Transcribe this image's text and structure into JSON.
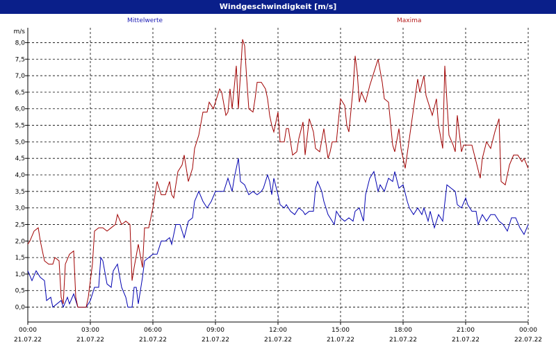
{
  "window": {
    "title": "Windgeschwindigkeit [m/s]"
  },
  "chart_data": {
    "type": "line",
    "title": "Windgeschwindigkeit [m/s]",
    "ylabel": "m/s",
    "ylim": [
      -0.45,
      8.45
    ],
    "xlim": [
      0,
      24
    ],
    "grid": true,
    "y_ticks": [
      "0,0",
      "0,5",
      "1,0",
      "1,5",
      "2,0",
      "2,5",
      "3,0",
      "3,5",
      "4,0",
      "4,5",
      "5,0",
      "5,5",
      "6,0",
      "6,5",
      "7,0",
      "7,5",
      "8,0"
    ],
    "x_ticks": [
      {
        "time": "00:00",
        "date": "21.07.22"
      },
      {
        "time": "03:00",
        "date": "21.07.22"
      },
      {
        "time": "06:00",
        "date": "21.07.22"
      },
      {
        "time": "09:00",
        "date": "21.07.22"
      },
      {
        "time": "12:00",
        "date": "21.07.22"
      },
      {
        "time": "15:00",
        "date": "21.07.22"
      },
      {
        "time": "18:00",
        "date": "21.07.22"
      },
      {
        "time": "21:00",
        "date": "21.07.22"
      },
      {
        "time": "00:00",
        "date": "22.07.22"
      }
    ],
    "series": [
      {
        "name": "Mittelwerte",
        "color": "#0000b0",
        "points": [
          [
            0,
            1.1
          ],
          [
            0.2,
            0.8
          ],
          [
            0.4,
            1.1
          ],
          [
            0.6,
            0.9
          ],
          [
            0.8,
            0.8
          ],
          [
            0.9,
            0.2
          ],
          [
            1.1,
            0.3
          ],
          [
            1.2,
            0.0
          ],
          [
            1.4,
            0.1
          ],
          [
            1.6,
            0.2
          ],
          [
            1.7,
            0.0
          ],
          [
            1.9,
            0.3
          ],
          [
            2.0,
            0.1
          ],
          [
            2.2,
            0.4
          ],
          [
            2.4,
            0.0
          ],
          [
            2.6,
            0.0
          ],
          [
            2.8,
            0.0
          ],
          [
            3.0,
            0.2
          ],
          [
            3.2,
            0.6
          ],
          [
            3.4,
            0.6
          ],
          [
            3.5,
            1.5
          ],
          [
            3.6,
            1.4
          ],
          [
            3.8,
            0.7
          ],
          [
            4.0,
            0.6
          ],
          [
            4.1,
            1.1
          ],
          [
            4.3,
            1.3
          ],
          [
            4.5,
            0.6
          ],
          [
            4.7,
            0.3
          ],
          [
            4.8,
            0.0
          ],
          [
            5.0,
            0.0
          ],
          [
            5.1,
            0.6
          ],
          [
            5.2,
            0.6
          ],
          [
            5.3,
            0.1
          ],
          [
            5.5,
            0.9
          ],
          [
            5.6,
            1.4
          ],
          [
            5.8,
            1.5
          ],
          [
            6.0,
            1.6
          ],
          [
            6.2,
            1.6
          ],
          [
            6.4,
            2.0
          ],
          [
            6.6,
            2.0
          ],
          [
            6.8,
            2.1
          ],
          [
            6.9,
            1.9
          ],
          [
            7.1,
            2.5
          ],
          [
            7.3,
            2.5
          ],
          [
            7.5,
            2.1
          ],
          [
            7.7,
            2.6
          ],
          [
            7.9,
            2.7
          ],
          [
            8.0,
            3.2
          ],
          [
            8.2,
            3.5
          ],
          [
            8.4,
            3.2
          ],
          [
            8.6,
            3.0
          ],
          [
            8.8,
            3.2
          ],
          [
            9.0,
            3.5
          ],
          [
            9.2,
            3.5
          ],
          [
            9.4,
            3.5
          ],
          [
            9.6,
            3.9
          ],
          [
            9.8,
            3.5
          ],
          [
            9.9,
            3.9
          ],
          [
            10.1,
            4.5
          ],
          [
            10.2,
            3.8
          ],
          [
            10.4,
            3.7
          ],
          [
            10.6,
            3.4
          ],
          [
            10.8,
            3.5
          ],
          [
            11.0,
            3.4
          ],
          [
            11.2,
            3.5
          ],
          [
            11.3,
            3.6
          ],
          [
            11.5,
            4.0
          ],
          [
            11.6,
            3.8
          ],
          [
            11.7,
            3.4
          ],
          [
            11.8,
            3.9
          ],
          [
            12.0,
            3.4
          ],
          [
            12.1,
            3.1
          ],
          [
            12.3,
            3.0
          ],
          [
            12.4,
            3.1
          ],
          [
            12.6,
            2.9
          ],
          [
            12.8,
            2.8
          ],
          [
            13.0,
            3.0
          ],
          [
            13.2,
            2.9
          ],
          [
            13.3,
            2.8
          ],
          [
            13.5,
            2.9
          ],
          [
            13.7,
            2.9
          ],
          [
            13.8,
            3.6
          ],
          [
            13.9,
            3.8
          ],
          [
            14.1,
            3.5
          ],
          [
            14.2,
            3.2
          ],
          [
            14.4,
            2.8
          ],
          [
            14.5,
            2.7
          ],
          [
            14.7,
            2.5
          ],
          [
            14.8,
            2.9
          ],
          [
            15.0,
            2.7
          ],
          [
            15.2,
            2.6
          ],
          [
            15.4,
            2.7
          ],
          [
            15.6,
            2.6
          ],
          [
            15.7,
            2.9
          ],
          [
            15.9,
            3.0
          ],
          [
            16.1,
            2.6
          ],
          [
            16.2,
            3.4
          ],
          [
            16.4,
            3.9
          ],
          [
            16.6,
            4.1
          ],
          [
            16.8,
            3.5
          ],
          [
            16.9,
            3.7
          ],
          [
            17.1,
            3.5
          ],
          [
            17.3,
            3.9
          ],
          [
            17.5,
            3.8
          ],
          [
            17.6,
            4.1
          ],
          [
            17.8,
            3.6
          ],
          [
            18.0,
            3.7
          ],
          [
            18.2,
            3.2
          ],
          [
            18.3,
            3.0
          ],
          [
            18.5,
            2.8
          ],
          [
            18.7,
            3.0
          ],
          [
            18.9,
            2.8
          ],
          [
            19.0,
            3.0
          ],
          [
            19.2,
            2.6
          ],
          [
            19.3,
            2.9
          ],
          [
            19.5,
            2.4
          ],
          [
            19.7,
            2.8
          ],
          [
            19.9,
            2.6
          ],
          [
            20.1,
            3.7
          ],
          [
            20.3,
            3.6
          ],
          [
            20.5,
            3.5
          ],
          [
            20.6,
            3.1
          ],
          [
            20.8,
            3.0
          ],
          [
            21.0,
            3.3
          ],
          [
            21.1,
            3.1
          ],
          [
            21.3,
            2.9
          ],
          [
            21.5,
            2.9
          ],
          [
            21.6,
            2.5
          ],
          [
            21.8,
            2.8
          ],
          [
            22.0,
            2.6
          ],
          [
            22.2,
            2.8
          ],
          [
            22.4,
            2.8
          ],
          [
            22.6,
            2.6
          ],
          [
            22.8,
            2.5
          ],
          [
            23.0,
            2.3
          ],
          [
            23.2,
            2.7
          ],
          [
            23.4,
            2.7
          ],
          [
            23.6,
            2.4
          ],
          [
            23.8,
            2.2
          ],
          [
            24,
            2.5
          ]
        ]
      },
      {
        "name": "Maxima",
        "color": "#a00000",
        "points": [
          [
            0,
            1.9
          ],
          [
            0.1,
            2.0
          ],
          [
            0.3,
            2.3
          ],
          [
            0.5,
            2.4
          ],
          [
            0.6,
            2.0
          ],
          [
            0.8,
            1.4
          ],
          [
            1.0,
            1.3
          ],
          [
            1.2,
            1.3
          ],
          [
            1.3,
            1.5
          ],
          [
            1.5,
            1.4
          ],
          [
            1.6,
            0.3
          ],
          [
            1.7,
            0.1
          ],
          [
            1.8,
            1.3
          ],
          [
            2.0,
            1.6
          ],
          [
            2.2,
            1.7
          ],
          [
            2.3,
            0.3
          ],
          [
            2.4,
            0.0
          ],
          [
            2.6,
            0.0
          ],
          [
            2.8,
            0.0
          ],
          [
            2.9,
            0.3
          ],
          [
            3.1,
            1.3
          ],
          [
            3.2,
            2.3
          ],
          [
            3.4,
            2.4
          ],
          [
            3.6,
            2.4
          ],
          [
            3.8,
            2.3
          ],
          [
            4.0,
            2.4
          ],
          [
            4.2,
            2.5
          ],
          [
            4.3,
            2.8
          ],
          [
            4.5,
            2.5
          ],
          [
            4.7,
            2.6
          ],
          [
            4.9,
            2.5
          ],
          [
            5.0,
            0.8
          ],
          [
            5.1,
            1.2
          ],
          [
            5.3,
            1.9
          ],
          [
            5.5,
            1.2
          ],
          [
            5.6,
            2.4
          ],
          [
            5.8,
            2.4
          ],
          [
            6.0,
            3.0
          ],
          [
            6.1,
            3.4
          ],
          [
            6.2,
            3.8
          ],
          [
            6.4,
            3.4
          ],
          [
            6.6,
            3.4
          ],
          [
            6.8,
            3.8
          ],
          [
            6.9,
            3.4
          ],
          [
            7.0,
            3.3
          ],
          [
            7.2,
            4.1
          ],
          [
            7.4,
            4.3
          ],
          [
            7.5,
            4.6
          ],
          [
            7.7,
            3.8
          ],
          [
            7.9,
            4.2
          ],
          [
            8.0,
            4.8
          ],
          [
            8.2,
            5.2
          ],
          [
            8.4,
            5.9
          ],
          [
            8.6,
            5.9
          ],
          [
            8.7,
            6.2
          ],
          [
            8.9,
            6.0
          ],
          [
            9.0,
            6.2
          ],
          [
            9.2,
            6.6
          ],
          [
            9.3,
            6.5
          ],
          [
            9.5,
            5.8
          ],
          [
            9.6,
            5.9
          ],
          [
            9.7,
            6.6
          ],
          [
            9.8,
            6.0
          ],
          [
            10.0,
            7.3
          ],
          [
            10.1,
            6.0
          ],
          [
            10.3,
            8.1
          ],
          [
            10.4,
            7.9
          ],
          [
            10.5,
            6.9
          ],
          [
            10.6,
            6.0
          ],
          [
            10.8,
            5.9
          ],
          [
            10.9,
            6.3
          ],
          [
            11.0,
            6.8
          ],
          [
            11.2,
            6.8
          ],
          [
            11.4,
            6.6
          ],
          [
            11.5,
            6.3
          ],
          [
            11.6,
            5.8
          ],
          [
            11.7,
            5.5
          ],
          [
            11.8,
            5.3
          ],
          [
            12.0,
            5.9
          ],
          [
            12.1,
            5.0
          ],
          [
            12.3,
            5.0
          ],
          [
            12.4,
            5.4
          ],
          [
            12.5,
            5.4
          ],
          [
            12.7,
            4.6
          ],
          [
            12.9,
            4.7
          ],
          [
            13.0,
            5.1
          ],
          [
            13.2,
            5.6
          ],
          [
            13.3,
            4.6
          ],
          [
            13.5,
            5.7
          ],
          [
            13.7,
            5.3
          ],
          [
            13.8,
            4.8
          ],
          [
            14.0,
            4.7
          ],
          [
            14.2,
            5.4
          ],
          [
            14.4,
            4.5
          ],
          [
            14.5,
            4.7
          ],
          [
            14.6,
            5.0
          ],
          [
            14.8,
            5.0
          ],
          [
            15.0,
            6.3
          ],
          [
            15.2,
            6.1
          ],
          [
            15.3,
            5.5
          ],
          [
            15.4,
            5.3
          ],
          [
            15.6,
            6.6
          ],
          [
            15.7,
            7.6
          ],
          [
            15.8,
            7.1
          ],
          [
            15.9,
            6.2
          ],
          [
            16.0,
            6.5
          ],
          [
            16.2,
            6.2
          ],
          [
            16.4,
            6.7
          ],
          [
            16.6,
            7.1
          ],
          [
            16.8,
            7.5
          ],
          [
            17.0,
            6.8
          ],
          [
            17.1,
            6.3
          ],
          [
            17.3,
            6.2
          ],
          [
            17.5,
            4.9
          ],
          [
            17.6,
            4.7
          ],
          [
            17.8,
            5.4
          ],
          [
            17.9,
            4.8
          ],
          [
            18.1,
            4.2
          ],
          [
            18.3,
            5.1
          ],
          [
            18.5,
            6.0
          ],
          [
            18.7,
            6.9
          ],
          [
            18.8,
            6.5
          ],
          [
            19.0,
            7.0
          ],
          [
            19.1,
            6.4
          ],
          [
            19.3,
            6.0
          ],
          [
            19.4,
            5.8
          ],
          [
            19.6,
            6.3
          ],
          [
            19.7,
            5.5
          ],
          [
            19.9,
            4.8
          ],
          [
            20.0,
            7.3
          ],
          [
            20.2,
            5.2
          ],
          [
            20.4,
            4.9
          ],
          [
            20.5,
            4.7
          ],
          [
            20.6,
            5.8
          ],
          [
            20.8,
            4.7
          ],
          [
            20.9,
            4.9
          ],
          [
            21.1,
            4.9
          ],
          [
            21.3,
            4.9
          ],
          [
            21.5,
            4.4
          ],
          [
            21.7,
            3.9
          ],
          [
            21.8,
            4.5
          ],
          [
            22.0,
            5.0
          ],
          [
            22.2,
            4.8
          ],
          [
            22.4,
            5.3
          ],
          [
            22.6,
            5.7
          ],
          [
            22.7,
            3.8
          ],
          [
            22.9,
            3.7
          ],
          [
            23.1,
            4.3
          ],
          [
            23.3,
            4.6
          ],
          [
            23.5,
            4.6
          ],
          [
            23.7,
            4.4
          ],
          [
            23.8,
            4.5
          ],
          [
            24,
            4.2
          ]
        ]
      }
    ]
  }
}
